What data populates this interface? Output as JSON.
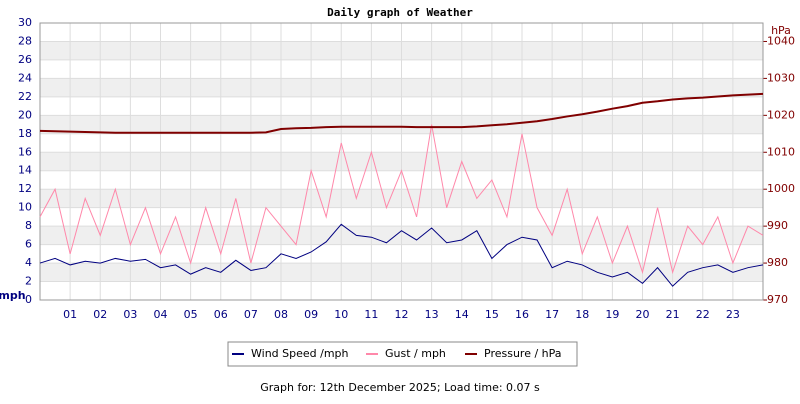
{
  "chart_data": {
    "type": "line",
    "title": "Daily graph of Weather",
    "y_label": "mph",
    "y2_label": "hPa",
    "footer": "Graph for: 12th December 2025; Load time: 0.07 s",
    "x": [
      0,
      0.5,
      1,
      1.5,
      2,
      2.5,
      3,
      3.5,
      4,
      4.5,
      5,
      5.5,
      6,
      6.5,
      7,
      7.5,
      8,
      8.5,
      9,
      9.5,
      10,
      10.5,
      11,
      11.5,
      12,
      12.5,
      13,
      13.5,
      14,
      14.5,
      15,
      15.5,
      16,
      16.5,
      17,
      17.5,
      18,
      18.5,
      19,
      19.5,
      20,
      20.5,
      21,
      21.5,
      22,
      22.5,
      23,
      23.5,
      24
    ],
    "xlim": [
      0,
      24
    ],
    "xticks": [
      {
        "value": 1,
        "label": "01"
      },
      {
        "value": 2,
        "label": "02"
      },
      {
        "value": 3,
        "label": "03"
      },
      {
        "value": 4,
        "label": "04"
      },
      {
        "value": 5,
        "label": "05"
      },
      {
        "value": 6,
        "label": "06"
      },
      {
        "value": 7,
        "label": "07"
      },
      {
        "value": 8,
        "label": "08"
      },
      {
        "value": 9,
        "label": "09"
      },
      10,
      11,
      12,
      13,
      14,
      15,
      16,
      17,
      18,
      19,
      20,
      21,
      22,
      23
    ],
    "ylim": [
      0,
      30
    ],
    "yticks": [
      0,
      2,
      4,
      6,
      8,
      10,
      12,
      14,
      16,
      18,
      20,
      22,
      24,
      26,
      28,
      30
    ],
    "y2lim": [
      970,
      1045
    ],
    "y2ticks": [
      970,
      980,
      990,
      1000,
      1010,
      1020,
      1030,
      1040
    ],
    "grid": true,
    "series": [
      {
        "name": "Gust / mph",
        "color": "#ff88aa",
        "values": [
          9,
          12,
          5,
          11,
          7,
          12,
          6,
          10,
          5,
          9,
          4,
          10,
          5,
          11,
          4,
          10,
          8,
          6,
          14,
          9,
          17,
          11,
          16,
          10,
          14,
          9,
          19,
          10,
          15,
          11,
          13,
          9,
          18,
          10,
          7,
          12,
          5,
          9,
          4,
          8,
          3,
          10,
          3,
          8,
          6,
          9,
          4,
          8,
          7
        ]
      },
      {
        "name": "Wind Speed /mph",
        "color": "#000080",
        "values": [
          4,
          4.5,
          3.8,
          4.2,
          4,
          4.5,
          4.2,
          4.4,
          3.5,
          3.8,
          2.8,
          3.5,
          3,
          4.3,
          3.2,
          3.5,
          5,
          4.5,
          5.2,
          6.3,
          8.2,
          7,
          6.8,
          6.2,
          7.5,
          6.5,
          7.8,
          6.2,
          6.5,
          7.5,
          4.5,
          6,
          6.8,
          6.5,
          3.5,
          4.2,
          3.8,
          3,
          2.5,
          3,
          1.8,
          3.5,
          1.5,
          3,
          3.5,
          3.8,
          3,
          3.5,
          3.8
        ]
      },
      {
        "name": "Pressure / hPa",
        "color": "#800000",
        "axis": "y2",
        "values": [
          1015.8,
          1015.7,
          1015.6,
          1015.5,
          1015.4,
          1015.3,
          1015.3,
          1015.3,
          1015.3,
          1015.3,
          1015.3,
          1015.3,
          1015.3,
          1015.3,
          1015.3,
          1015.4,
          1016.3,
          1016.5,
          1016.6,
          1016.8,
          1016.9,
          1016.9,
          1016.9,
          1016.9,
          1016.9,
          1016.8,
          1016.8,
          1016.8,
          1016.8,
          1017,
          1017.3,
          1017.6,
          1018,
          1018.4,
          1019,
          1019.7,
          1020.3,
          1021,
          1021.8,
          1022.5,
          1023.4,
          1023.8,
          1024.3,
          1024.6,
          1024.8,
          1025.1,
          1025.4,
          1025.6,
          1025.8
        ]
      }
    ]
  }
}
